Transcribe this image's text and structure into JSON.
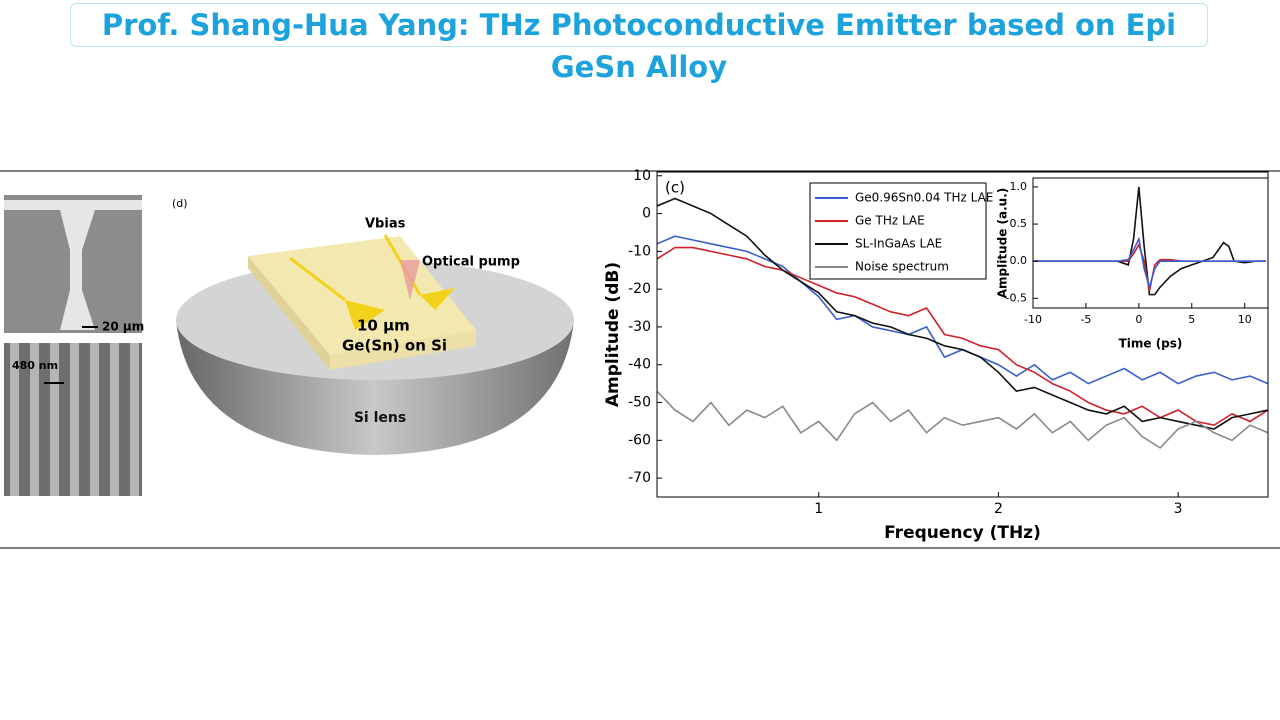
{
  "slide": {
    "title": "Prof. Shang-Hua Yang: THz Photoconductive Emitter based on Epi GeSn Alloy"
  },
  "sem": {
    "scale_top": "20 μm",
    "scale_bottom": "480 nm"
  },
  "diagram": {
    "panel_label": "(d)",
    "bias": "Vbias",
    "pump": "Optical pump",
    "gap": "10 μm",
    "layer": "Ge(Sn) on Si",
    "lens": "Si lens"
  },
  "chart_data": [
    {
      "type": "line",
      "panel_label": "(c)",
      "x_label": "Frequency (THz)",
      "y_label": "Amplitude (dB)",
      "xlim": [
        0.1,
        3.5
      ],
      "ylim": [
        -75,
        11
      ],
      "xticks": [
        1,
        2,
        3
      ],
      "yticks": [
        10,
        0,
        -10,
        -20,
        -30,
        -40,
        -50,
        -60,
        -70
      ],
      "legend": "top",
      "x": [
        0.1,
        0.2,
        0.3,
        0.4,
        0.5,
        0.6,
        0.7,
        0.8,
        0.9,
        1.0,
        1.1,
        1.2,
        1.3,
        1.4,
        1.5,
        1.6,
        1.7,
        1.8,
        1.9,
        2.0,
        2.1,
        2.2,
        2.3,
        2.4,
        2.5,
        2.6,
        2.7,
        2.8,
        2.9,
        3.0,
        3.1,
        3.2,
        3.3,
        3.4,
        3.5
      ],
      "series": [
        {
          "name": "Ge0.96Sn0.04 THz LAE",
          "color": "#3a5fcd",
          "values": [
            -8,
            -6,
            -7,
            -8,
            -9,
            -10,
            -12,
            -14,
            -18,
            -22,
            -28,
            -27,
            -30,
            -31,
            -32,
            -30,
            -38,
            -36,
            -38,
            -40,
            -43,
            -40,
            -44,
            -42,
            -45,
            -43,
            -41,
            -44,
            -42,
            -45,
            -43,
            -42,
            -44,
            -43,
            -45
          ]
        },
        {
          "name": "Ge THz LAE",
          "color": "#d0202a",
          "values": [
            -12,
            -9,
            -9,
            -10,
            -11,
            -12,
            -14,
            -15,
            -17,
            -19,
            -21,
            -22,
            -24,
            -26,
            -27,
            -25,
            -32,
            -33,
            -35,
            -36,
            -40,
            -42,
            -45,
            -47,
            -50,
            -52,
            -53,
            -51,
            -54,
            -52,
            -55,
            -56,
            -53,
            -55,
            -52
          ]
        },
        {
          "name": "SL-InGaAs LAE",
          "color": "#111111",
          "values": [
            2,
            4,
            2,
            0,
            -3,
            -6,
            -11,
            -15,
            -18,
            -21,
            -26,
            -27,
            -29,
            -30,
            -32,
            -33,
            -35,
            -36,
            -38,
            -42,
            -47,
            -46,
            -48,
            -50,
            -52,
            -53,
            -51,
            -55,
            -54,
            -55,
            -56,
            -57,
            -54,
            -53,
            -52
          ]
        },
        {
          "name": "Noise spectrum",
          "color": "#8a8a8a",
          "values": [
            -47,
            -52,
            -55,
            -50,
            -56,
            -52,
            -54,
            -51,
            -58,
            -55,
            -60,
            -53,
            -50,
            -55,
            -52,
            -58,
            -54,
            -56,
            -55,
            -54,
            -57,
            -53,
            -58,
            -55,
            -60,
            -56,
            -54,
            -59,
            -62,
            -57,
            -55,
            -58,
            -60,
            -56,
            -58
          ]
        }
      ]
    },
    {
      "type": "line",
      "x_label": "Time (ps)",
      "y_label": "Amplitude (a.u.)",
      "xlim": [
        -10,
        12.2
      ],
      "ylim": [
        -0.63,
        1.12
      ],
      "xticks": [
        -10,
        -5,
        0,
        5,
        10
      ],
      "yticks": [
        {
          "value": 1,
          "label": "1.0"
        },
        0.5,
        {
          "value": 0,
          "label": "0.0"
        },
        -0.5
      ],
      "x": [
        -10,
        -8,
        -6,
        -4,
        -2,
        -1,
        -0.5,
        0,
        0.5,
        1,
        1.5,
        2,
        3,
        4,
        5,
        6,
        7,
        8,
        8.5,
        9,
        10,
        11,
        12
      ],
      "series": [
        {
          "color": "#111111",
          "values": [
            0,
            0,
            0,
            0,
            0,
            -0.05,
            0.3,
            1.0,
            0.2,
            -0.45,
            -0.45,
            -0.35,
            -0.2,
            -0.1,
            -0.05,
            0,
            0.05,
            0.25,
            0.2,
            0,
            -0.02,
            0,
            0
          ]
        },
        {
          "color": "#d0202a",
          "values": [
            0,
            0,
            0,
            0,
            0,
            0,
            0.1,
            0.22,
            0,
            -0.4,
            -0.05,
            0.02,
            0.02,
            0,
            0,
            0,
            0,
            0,
            0,
            0,
            0,
            0,
            0
          ]
        },
        {
          "color": "#3a5fcd",
          "values": [
            0,
            0,
            0,
            0,
            0,
            0.02,
            0.15,
            0.3,
            -0.1,
            -0.35,
            -0.1,
            0,
            0,
            0,
            0,
            0,
            0,
            0,
            0,
            0,
            0,
            0,
            0
          ]
        }
      ]
    }
  ]
}
